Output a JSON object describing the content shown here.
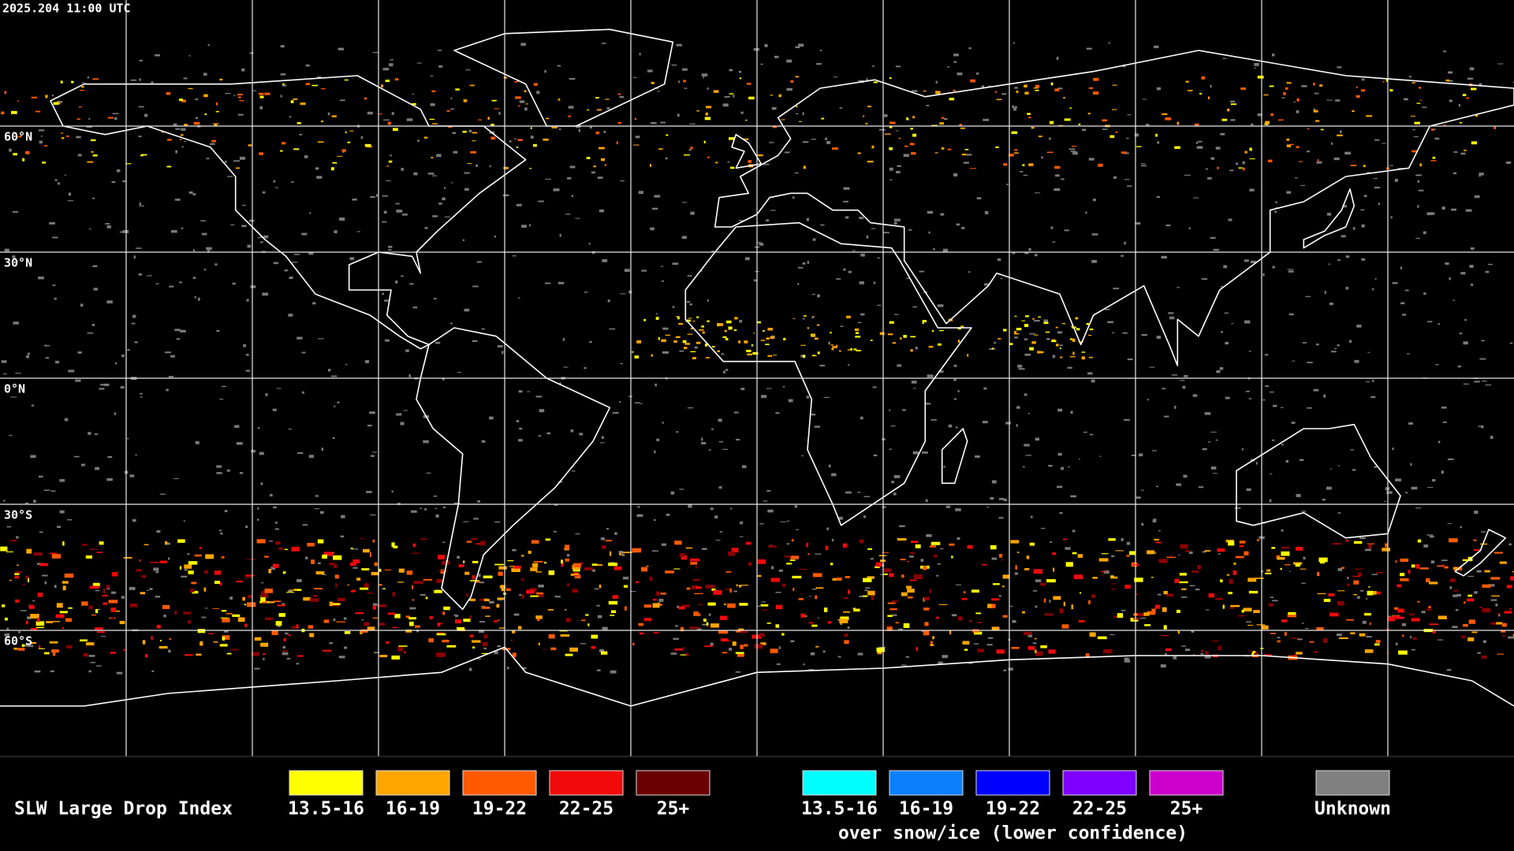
{
  "header": {
    "timestamp": "2025.204 11:00 UTC"
  },
  "map": {
    "latitude_labels": [
      "60°N",
      "30°N",
      "0°N",
      "30°S",
      "60°S"
    ]
  },
  "legend": {
    "title": "SLW Large Drop Index",
    "groups": [
      {
        "items": [
          {
            "label": "13.5-16",
            "color": "#ffff00"
          },
          {
            "label": "16-19",
            "color": "#ffa500"
          },
          {
            "label": "19-22",
            "color": "#ff5a00"
          },
          {
            "label": "22-25",
            "color": "#f00a0a"
          },
          {
            "label": "25+",
            "color": "#6b0000"
          }
        ]
      },
      {
        "items": [
          {
            "label": "13.5-16",
            "color": "#00ffff"
          },
          {
            "label": "16-19",
            "color": "#0a80ff"
          },
          {
            "label": "19-22",
            "color": "#0000ff"
          },
          {
            "label": "22-25",
            "color": "#7f00ff"
          },
          {
            "label": "25+",
            "color": "#cc00cc"
          }
        ],
        "caption": "over snow/ice (lower confidence)"
      },
      {
        "items": [
          {
            "label": "Unknown",
            "color": "#808080"
          }
        ]
      }
    ]
  }
}
